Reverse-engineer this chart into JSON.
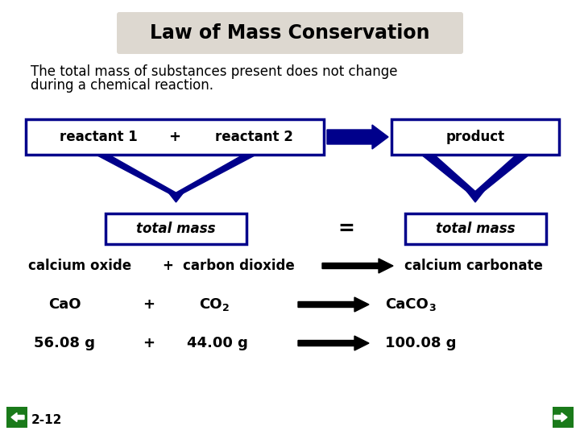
{
  "title": "Law of Mass Conservation",
  "subtitle_line1": "The total mass of substances present does not change",
  "subtitle_line2": "during a chemical reaction.",
  "bg_color": "#ffffff",
  "title_bg": "#ddd8d0",
  "dark_blue": "#00008B",
  "black": "#000000",
  "green_dark": "#1a7a1a",
  "slide_num": "2-12"
}
